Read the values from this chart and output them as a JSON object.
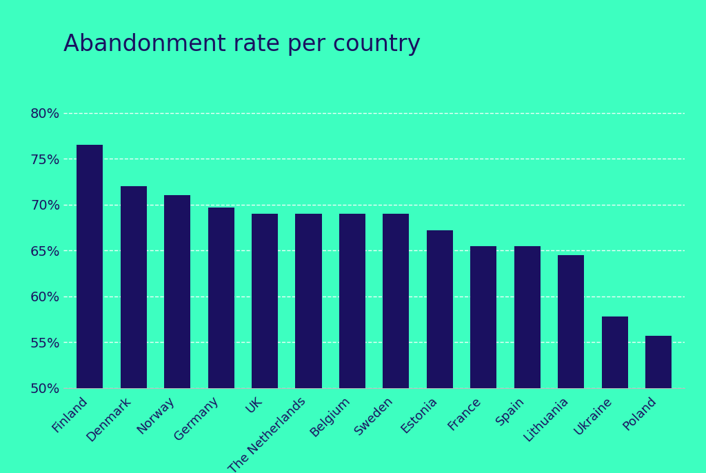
{
  "title": "Abandonment rate per country",
  "categories": [
    "Finland",
    "Denmark",
    "Norway",
    "Germany",
    "UK",
    "The Netherlands",
    "Belgium",
    "Sweden",
    "Estonia",
    "France",
    "Spain",
    "Lithuania",
    "Ukraine",
    "Poland"
  ],
  "values": [
    76.5,
    72.0,
    71.0,
    69.7,
    69.0,
    69.0,
    69.0,
    69.0,
    67.2,
    65.5,
    65.5,
    64.5,
    57.8,
    55.7
  ],
  "bar_color": "#1a1060",
  "background_color": "#3dffc0",
  "title_color": "#1a1060",
  "tick_label_color": "#1a1060",
  "grid_color": "#ffffff",
  "axis_line_color": "#bbbbbb",
  "ylim": [
    50,
    82
  ],
  "yticks": [
    50,
    55,
    60,
    65,
    70,
    75,
    80
  ],
  "title_fontsize": 24,
  "tick_fontsize": 14,
  "xtick_fontsize": 13
}
